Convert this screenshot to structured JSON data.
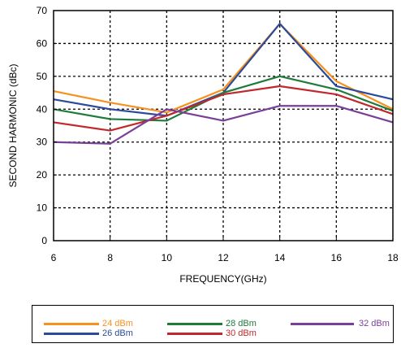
{
  "chart_data": {
    "type": "line",
    "xlabel": "FREQUENCY(GHz)",
    "ylabel": "SECOND HARMONIC (dBc)",
    "xlim": [
      6,
      18
    ],
    "ylim": [
      0,
      70
    ],
    "xticks": [
      "6",
      "8",
      "10",
      "12",
      "14",
      "16",
      "18"
    ],
    "yticks": [
      "0",
      "10",
      "20",
      "30",
      "40",
      "50",
      "60",
      "70"
    ],
    "grid": true,
    "legend_placement": "bottom",
    "x": [
      6,
      8,
      10,
      12,
      14,
      16,
      18
    ],
    "series": [
      {
        "name": "24 dBm",
        "color": "#f7901e",
        "values": [
          45.5,
          42,
          39,
          46,
          66,
          48.5,
          40
        ]
      },
      {
        "name": "26 dBm",
        "color": "#2b4a9b",
        "values": [
          43,
          40,
          38,
          45,
          66,
          47,
          43
        ]
      },
      {
        "name": "28 dBm",
        "color": "#1e7b3a",
        "values": [
          40,
          37,
          36.5,
          45,
          50,
          46,
          39.5
        ]
      },
      {
        "name": "30 dBm",
        "color": "#c0282d",
        "values": [
          36,
          33.5,
          38,
          44.5,
          47,
          44.5,
          38.5
        ]
      },
      {
        "name": "32 dBm",
        "color": "#7a3f98",
        "values": [
          30,
          29.5,
          40,
          36.5,
          41,
          41,
          36
        ]
      }
    ]
  }
}
